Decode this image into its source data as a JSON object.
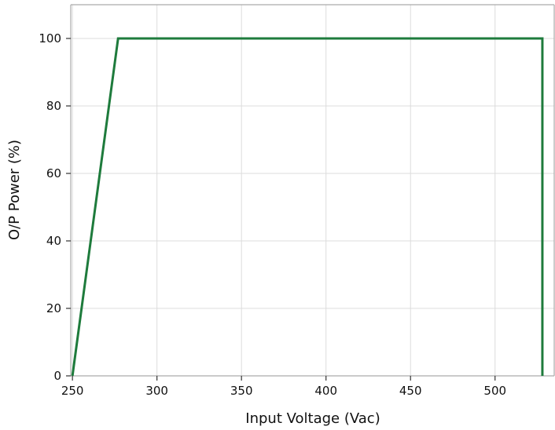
{
  "chart_data": {
    "type": "line",
    "title": "",
    "xlabel": "Input Voltage (Vac)",
    "ylabel": "O/P Power (%)",
    "xlim": [
      249,
      535
    ],
    "ylim": [
      0,
      110
    ],
    "xticks": [
      250,
      300,
      350,
      400,
      450,
      500
    ],
    "yticks": [
      0,
      20,
      40,
      60,
      80,
      100
    ],
    "xtick_labels": [
      "250",
      "300",
      "350",
      "400",
      "450",
      "500"
    ],
    "ytick_labels": [
      "0",
      "20",
      "40",
      "60",
      "80",
      "100"
    ],
    "grid": true,
    "series": [
      {
        "color": "#1e7b3c",
        "x": [
          250,
          277,
          528,
          528
        ],
        "y": [
          0,
          100,
          100,
          0
        ]
      }
    ]
  }
}
